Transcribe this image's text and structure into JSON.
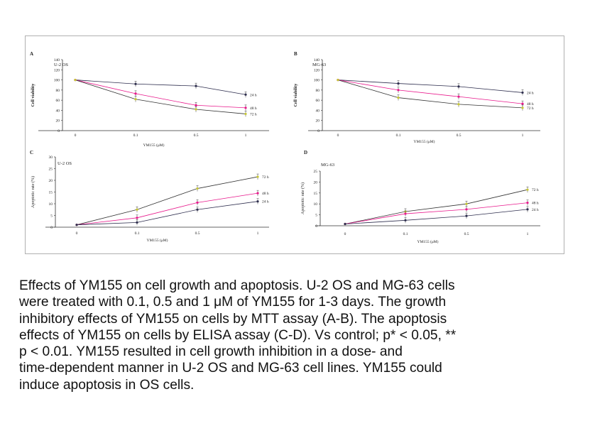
{
  "colors": {
    "series_24h": "#2f2f4f",
    "series_48h": "#e8198c",
    "series_72h": "#c8c832",
    "axis": "#333333",
    "frame": "#b0b0b0"
  },
  "chart_data": [
    {
      "panel_letter": "A",
      "panel_title": "U-2 OS",
      "type": "line",
      "xlabel": "YM155 (μM)",
      "ylabel": "Cell viability",
      "categories": [
        "0",
        "0.1",
        "0.5",
        "1"
      ],
      "yticks": [
        "0",
        "20",
        "40",
        "60",
        "80",
        "100",
        "120",
        "140"
      ],
      "ylim": [
        0,
        140
      ],
      "grid": false,
      "series": [
        {
          "name": "24 h",
          "color": "#2f2f4f",
          "values": [
            100,
            92,
            88,
            71
          ]
        },
        {
          "name": "48 h",
          "color": "#e8198c",
          "values": [
            100,
            73,
            50,
            45
          ]
        },
        {
          "name": "72 h",
          "color": "#c8c832",
          "values": [
            100,
            62,
            42,
            33
          ]
        }
      ]
    },
    {
      "panel_letter": "B",
      "panel_title": "MG-63",
      "type": "line",
      "xlabel": "YM155 (μM)",
      "ylabel": "Cell viability",
      "categories": [
        "0",
        "0.1",
        "0.5",
        "1"
      ],
      "yticks": [
        "0",
        "20",
        "40",
        "60",
        "80",
        "100",
        "120",
        "140"
      ],
      "ylim": [
        0,
        140
      ],
      "grid": false,
      "series": [
        {
          "name": "24 h",
          "color": "#2f2f4f",
          "values": [
            100,
            93,
            87,
            75
          ]
        },
        {
          "name": "48 h",
          "color": "#e8198c",
          "values": [
            100,
            80,
            67,
            53
          ]
        },
        {
          "name": "72 h",
          "color": "#c8c832",
          "values": [
            100,
            65,
            52,
            45
          ]
        }
      ]
    },
    {
      "panel_letter": "C",
      "panel_title": "U-2 OS",
      "type": "line",
      "xlabel": "YM155 (μM)",
      "ylabel": "Apoptotic rate (%)",
      "categories": [
        "0",
        "0.1",
        "0.5",
        "1"
      ],
      "yticks": [
        "0",
        "5",
        "10",
        "15",
        "20",
        "25",
        "30"
      ],
      "ylim": [
        0,
        30
      ],
      "grid": false,
      "series": [
        {
          "name": "72 h",
          "color": "#c8c832",
          "values": [
            1,
            7.5,
            16.5,
            21.5
          ]
        },
        {
          "name": "48 h",
          "color": "#e8198c",
          "values": [
            1,
            4,
            10.5,
            14.5
          ]
        },
        {
          "name": "24 h",
          "color": "#2f2f4f",
          "values": [
            1,
            2,
            7.5,
            11
          ]
        }
      ]
    },
    {
      "panel_letter": "D",
      "panel_title": "MG-63",
      "type": "line",
      "xlabel": "YM155 (μM)",
      "ylabel": "Apoptotic rate (%)",
      "categories": [
        "0",
        "0.1",
        "0.5",
        "1"
      ],
      "yticks": [
        "0",
        "5",
        "10",
        "15",
        "20",
        "25"
      ],
      "ylim": [
        0,
        25
      ],
      "grid": false,
      "series": [
        {
          "name": "72 h",
          "color": "#c8c832",
          "values": [
            0.8,
            6.5,
            10,
            16.5
          ]
        },
        {
          "name": "48 h",
          "color": "#e8198c",
          "values": [
            0.8,
            5.5,
            7.5,
            10.5
          ]
        },
        {
          "name": "24 h",
          "color": "#2f2f4f",
          "values": [
            0.8,
            2.5,
            4.5,
            7.5
          ]
        }
      ]
    }
  ],
  "caption": {
    "lines": [
      "Effects of YM155 on cell growth and apoptosis. U-2 OS and MG-63 cells",
      "were treated with 0.1, 0.5 and 1 μM of YM155 for 1-3 days. The growth",
      "inhibitory effects of YM155 on cells by MTT assay (A-B). The apoptosis",
      "effects of YM155 on cells by ELISA assay (C-D). Vs control; p* < 0.05, **",
      "p < 0.01. YM155 resulted in cell growth inhibition in a dose- and",
      "time-dependent manner in U-2 OS and MG-63 cell lines. YM155 could",
      "induce apoptosis in OS cells."
    ]
  }
}
